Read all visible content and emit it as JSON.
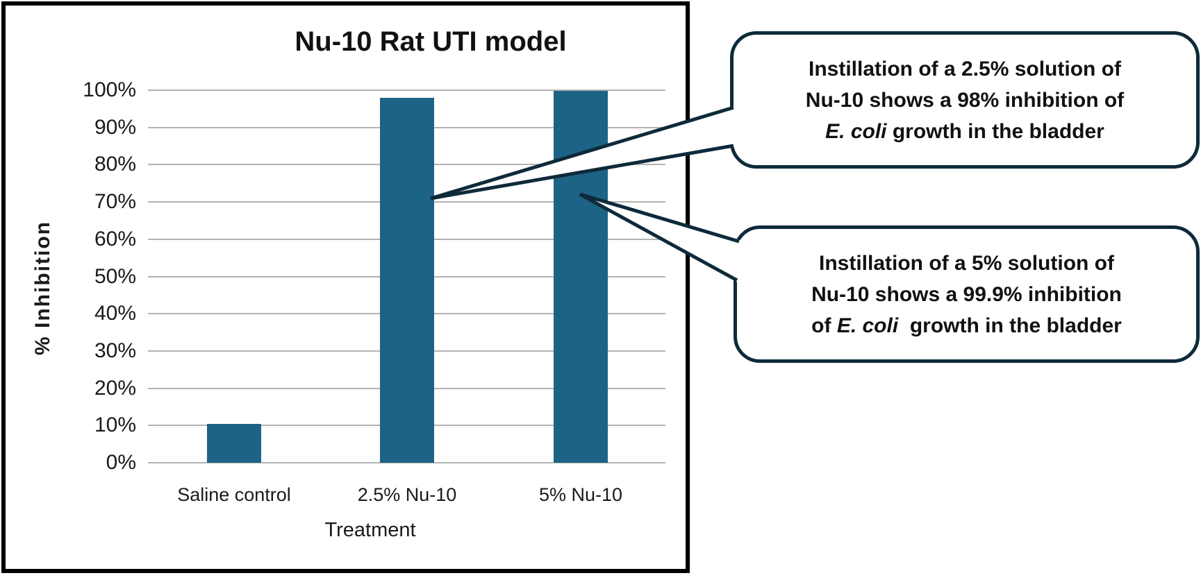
{
  "chart_data": {
    "type": "bar",
    "title": "Nu-10 Rat UTI model",
    "xlabel": "Treatment",
    "ylabel": "% Inhibition",
    "categories": [
      "Saline control",
      "2.5% Nu-10",
      "5% Nu-10"
    ],
    "values": [
      10.5,
      98,
      99.9
    ],
    "ylim": [
      0,
      100
    ],
    "ytick_values": [
      0,
      10,
      20,
      30,
      40,
      50,
      60,
      70,
      80,
      90,
      100
    ],
    "ytick_labels": [
      "0%",
      "10%",
      "20%",
      "30%",
      "40%",
      "50%",
      "60%",
      "70%",
      "80%",
      "90%",
      "100%"
    ],
    "grid": true,
    "legend": "none",
    "bar_color": "#1d6385",
    "gridline_color": "#b3b3b3"
  },
  "callouts": [
    {
      "line1": "Instillation of a 2.5% solution of",
      "line2": "Nu-10 shows a 98% inhibition of",
      "line3_pre": "",
      "line3_italic": "E. coli",
      "line3_post": " growth in the bladder"
    },
    {
      "line1": "Instillation of a 5% solution of",
      "line2": "Nu-10 shows a 99.9% inhibition",
      "line3_pre": "of ",
      "line3_italic": "E. coli",
      "line3_post": "  growth in the bladder"
    }
  ],
  "colors": {
    "bar": "#1d6385",
    "callout_border": "#0e2a3a",
    "frame_border": "#000000",
    "gridline": "#b3b3b3",
    "text": "#1a1a1a"
  }
}
